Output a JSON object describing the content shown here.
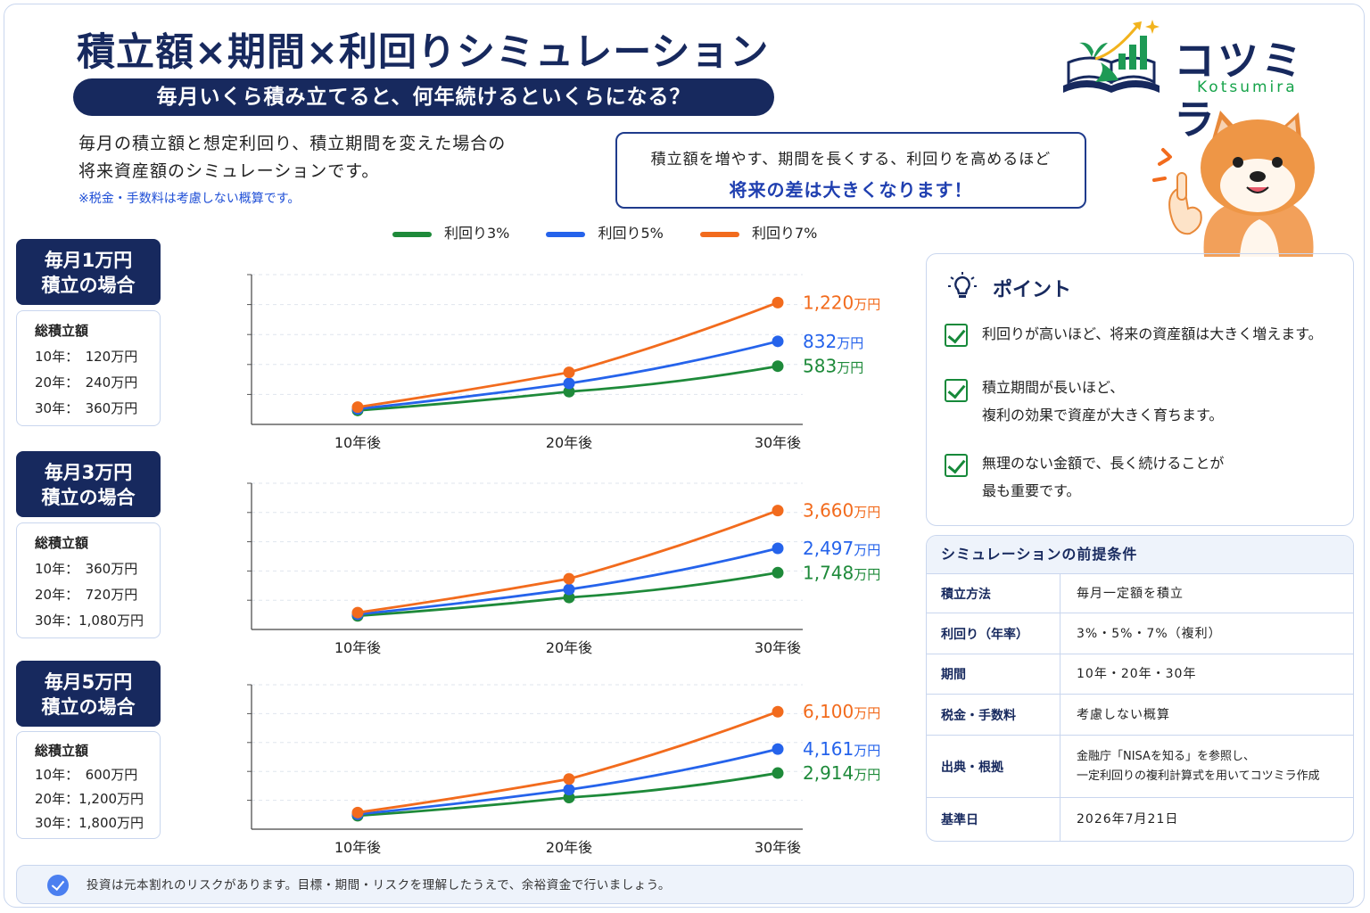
{
  "header": {
    "title": "積立額×期間×利回りシミュレーション",
    "subtitle": "毎月いくら積み立てると、何年続けるといくらになる？",
    "description_line1": "毎月の積立額と想定利回り、積立期間を変えた場合の",
    "description_line2": "将来資産額のシミュレーションです。",
    "note": "※税金・手数料は考慮しない概算です。",
    "callout_line1": "積立額を増やす、期間を長くする、利回りを高めるほど",
    "callout_line2": "将来の差は大きくなります！"
  },
  "logo": {
    "name": "コツミラ",
    "romaji": "Kotsumira",
    "icon": "book-sprout-chart-icon"
  },
  "mascot": {
    "icon": "shiba-dog-mascot-icon"
  },
  "colors": {
    "navy": "#17295e",
    "green": "#1e8a3a",
    "blue": "#2563eb",
    "orange": "#f26b1d"
  },
  "legend": [
    {
      "label": "利回り3%",
      "color": "#1e8a3a"
    },
    {
      "label": "利回り5%",
      "color": "#2563eb"
    },
    {
      "label": "利回り7%",
      "color": "#f26b1d"
    }
  ],
  "sections": [
    {
      "badge_line1": "毎月1万円",
      "badge_line2": "積立の場合",
      "total_label": "総積立額",
      "rows": [
        "10年：　120万円",
        "20年：　240万円",
        "30年：　360万円"
      ]
    },
    {
      "badge_line1": "毎月3万円",
      "badge_line2": "積立の場合",
      "total_label": "総積立額",
      "rows": [
        "10年：　360万円",
        "20年：　720万円",
        "30年：1,080万円"
      ]
    },
    {
      "badge_line1": "毎月5万円",
      "badge_line2": "積立の場合",
      "total_label": "総積立額",
      "rows": [
        "10年：　600万円",
        "20年：1,200万円",
        "30年：1,800万円"
      ]
    }
  ],
  "chart_data": [
    {
      "type": "line",
      "categories": [
        "10年後",
        "20年後",
        "30年後"
      ],
      "unit": "万円",
      "series": [
        {
          "name": "利回り3%",
          "values": [
            140,
            328,
            583
          ]
        },
        {
          "name": "利回り5%",
          "values": [
            155,
            411,
            832
          ]
        },
        {
          "name": "利回り7%",
          "values": [
            173,
            521,
            1220
          ]
        }
      ],
      "end_labels": [
        "583",
        "832",
        "1,220"
      ],
      "ylim": [
        0,
        1500
      ],
      "grid": true
    },
    {
      "type": "line",
      "categories": [
        "10年後",
        "20年後",
        "30年後"
      ],
      "unit": "万円",
      "series": [
        {
          "name": "利回り3%",
          "values": [
            419,
            985,
            1748
          ]
        },
        {
          "name": "利回り5%",
          "values": [
            466,
            1233,
            2497
          ]
        },
        {
          "name": "利回り7%",
          "values": [
            519,
            1562,
            3660
          ]
        }
      ],
      "end_labels": [
        "1,748",
        "2,497",
        "3,660"
      ],
      "ylim": [
        0,
        4500
      ],
      "grid": true
    },
    {
      "type": "line",
      "categories": [
        "10年後",
        "20年後",
        "30年後"
      ],
      "unit": "万円",
      "series": [
        {
          "name": "利回り3%",
          "values": [
            699,
            1642,
            2914
          ]
        },
        {
          "name": "利回り5%",
          "values": [
            776,
            2055,
            4161
          ]
        },
        {
          "name": "利回り7%",
          "values": [
            865,
            2604,
            6100
          ]
        }
      ],
      "end_labels": [
        "2,914",
        "4,161",
        "6,100"
      ],
      "ylim": [
        0,
        7500
      ],
      "grid": true
    }
  ],
  "points": {
    "title": "ポイント",
    "items": [
      {
        "line1": "利回りが高いほど、将来の資産額は大きく増えます。",
        "line2": ""
      },
      {
        "line1": "積立期間が長いほど、",
        "line2": "複利の効果で資産が大きく育ちます。"
      },
      {
        "line1": "無理のない金額で、長く続けることが",
        "line2": "最も重要です。"
      }
    ]
  },
  "conditions": {
    "title": "シミュレーションの前提条件",
    "rows": [
      {
        "key": "積立方法",
        "value1": "毎月一定額を積立",
        "value2": ""
      },
      {
        "key": "利回り（年率）",
        "value1": "3%・5%・7%（複利）",
        "value2": ""
      },
      {
        "key": "期間",
        "value1": "10年・20年・30年",
        "value2": ""
      },
      {
        "key": "税金・手数料",
        "value1": "考慮しない概算",
        "value2": ""
      },
      {
        "key": "出典・根拠",
        "value1": "金融庁「NISAを知る」を参照し、",
        "value2": "一定利回りの複利計算式を用いてコツミラ作成"
      },
      {
        "key": "基準日",
        "value1": "2026年7月21日",
        "value2": ""
      }
    ]
  },
  "footer": {
    "text": "投資は元本割れのリスクがあります。目標・期間・リスクを理解したうえで、余裕資金で行いましょう。"
  }
}
